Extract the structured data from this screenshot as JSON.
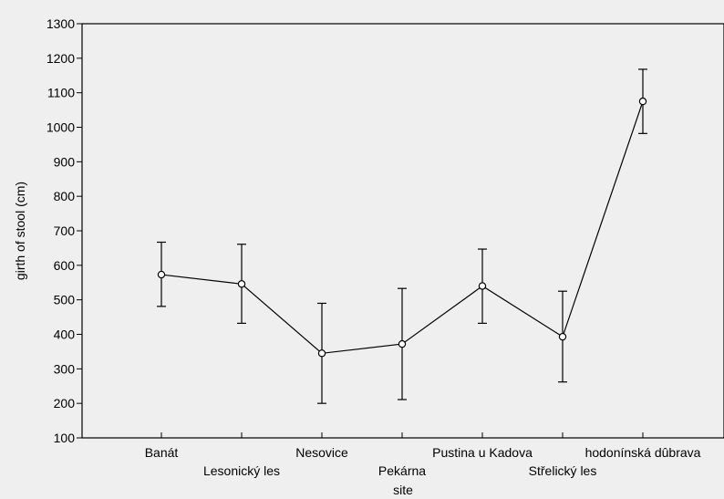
{
  "chart_data": {
    "type": "line",
    "xlabel": "site",
    "ylabel": "girth of stool (cm)",
    "ylim": [
      100,
      1300
    ],
    "yticks": [
      100,
      200,
      300,
      400,
      500,
      600,
      700,
      800,
      900,
      1000,
      1100,
      1200,
      1300
    ],
    "grid": false,
    "categories": [
      "Banát",
      "Lesonický les",
      "Nesovice",
      "Pekárna",
      "Pustina u Kadova",
      "Střelický les",
      "hodonínská dûbrava"
    ],
    "values": [
      573,
      546,
      345,
      372,
      540,
      393,
      1075
    ],
    "error_low": [
      481,
      432,
      200,
      211,
      432,
      262,
      982
    ],
    "error_high": [
      667,
      661,
      490,
      533,
      647,
      525,
      1168
    ]
  }
}
